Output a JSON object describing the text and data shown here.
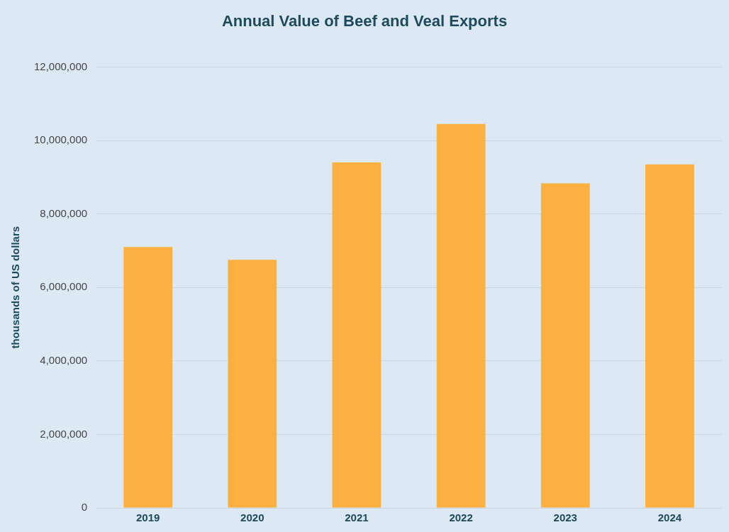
{
  "chart_data": {
    "type": "bar",
    "title": "Annual Value of Beef and Veal Exports",
    "ylabel": "thousands of US dollars",
    "categories": [
      "2019",
      "2020",
      "2021",
      "2022",
      "2023",
      "2024"
    ],
    "values": [
      7100000,
      6750000,
      9400000,
      10450000,
      8830000,
      9350000
    ],
    "color": "#fbb040",
    "ylim": [
      0,
      12000000
    ],
    "yticks": [
      0,
      {
        "value": 2000000,
        "label": "2,000,000"
      },
      {
        "value": 4000000,
        "label": "4,000,000"
      },
      {
        "value": 6000000,
        "label": "6,000,000"
      },
      {
        "value": 8000000,
        "label": "8,000,000"
      },
      {
        "value": 10000000,
        "label": "10,000,000"
      },
      {
        "value": 12000000,
        "label": "12,000,000"
      }
    ],
    "grid": "y",
    "legend": false
  }
}
